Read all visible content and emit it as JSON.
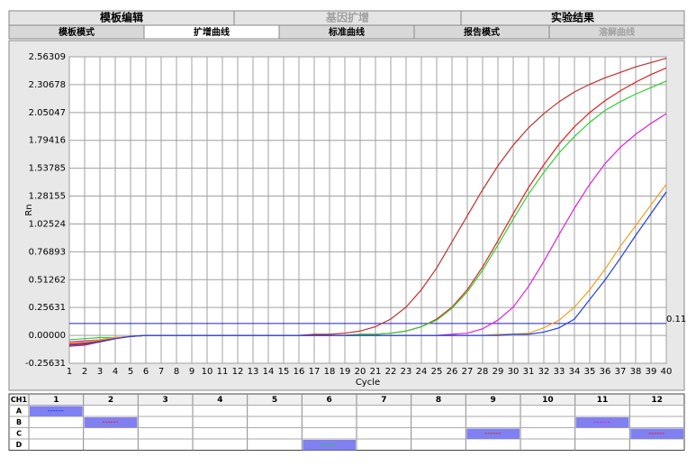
{
  "tabs": [
    {
      "label": "模板编辑",
      "disabled": false
    },
    {
      "label": "基因扩增",
      "disabled": true
    },
    {
      "label": "实验结果",
      "disabled": false
    }
  ],
  "subtabs": [
    {
      "label": "模板模式",
      "disabled": false,
      "active": false
    },
    {
      "label": "扩增曲线",
      "disabled": false,
      "active": true
    },
    {
      "label": "标准曲线",
      "disabled": false,
      "active": false
    },
    {
      "label": "报告模式",
      "disabled": false,
      "active": false
    },
    {
      "label": "溶解曲线",
      "disabled": true,
      "active": false
    }
  ],
  "chart_data": {
    "type": "line",
    "x_label": "Cycle",
    "y_label": "Rn",
    "x": [
      1,
      2,
      3,
      4,
      5,
      6,
      7,
      8,
      9,
      10,
      11,
      12,
      13,
      14,
      15,
      16,
      17,
      18,
      19,
      20,
      21,
      22,
      23,
      24,
      25,
      26,
      27,
      28,
      29,
      30,
      31,
      32,
      33,
      34,
      35,
      36,
      37,
      38,
      39,
      40
    ],
    "xlim": [
      1,
      40
    ],
    "xticks": [
      1,
      2,
      3,
      4,
      5,
      6,
      7,
      8,
      9,
      10,
      11,
      12,
      13,
      14,
      15,
      16,
      17,
      18,
      19,
      20,
      21,
      22,
      23,
      24,
      25,
      26,
      27,
      28,
      29,
      30,
      31,
      32,
      33,
      34,
      35,
      36,
      37,
      38,
      39,
      40
    ],
    "ylim": [
      -0.25631,
      2.56309
    ],
    "yticks": [
      -0.25631,
      {
        "value": 0,
        "label": "0.00000"
      },
      0.25631,
      0.51262,
      0.76893,
      1.02524,
      1.28155,
      1.53785,
      1.79416,
      2.05047,
      2.30678,
      2.56309
    ],
    "grid": true,
    "threshold": {
      "value": 0.11,
      "label": "0.11",
      "color": "#2020c0"
    },
    "series": [
      {
        "color": "#c03030",
        "values": [
          -0.08,
          -0.07,
          -0.05,
          -0.03,
          -0.01,
          0,
          0,
          0,
          0,
          0,
          0,
          0,
          0,
          0,
          0,
          0,
          0.01,
          0.01,
          0.02,
          0.04,
          0.08,
          0.15,
          0.26,
          0.42,
          0.62,
          0.86,
          1.1,
          1.34,
          1.56,
          1.75,
          1.91,
          2.04,
          2.15,
          2.24,
          2.31,
          2.37,
          2.42,
          2.47,
          2.51,
          2.55
        ]
      },
      {
        "color": "#e02020",
        "values": [
          -0.1,
          -0.09,
          -0.06,
          -0.03,
          -0.01,
          0,
          0,
          0,
          0,
          0,
          0,
          0,
          0,
          0,
          0,
          0,
          0,
          0,
          0,
          0.01,
          0.01,
          0.02,
          0.04,
          0.08,
          0.15,
          0.26,
          0.42,
          0.63,
          0.87,
          1.12,
          1.36,
          1.57,
          1.76,
          1.92,
          2.05,
          2.16,
          2.25,
          2.33,
          2.4,
          2.46
        ]
      },
      {
        "color": "#30d030",
        "values": [
          -0.04,
          -0.03,
          -0.02,
          -0.02,
          -0.01,
          0,
          0,
          0,
          0,
          0,
          0,
          0,
          0,
          0,
          0,
          0,
          0,
          0,
          0,
          0.01,
          0.01,
          0.02,
          0.04,
          0.08,
          0.14,
          0.25,
          0.4,
          0.6,
          0.83,
          1.07,
          1.3,
          1.5,
          1.68,
          1.83,
          1.96,
          2.07,
          2.15,
          2.22,
          2.28,
          2.34
        ]
      },
      {
        "color": "#e020e0",
        "values": [
          -0.06,
          -0.05,
          -0.04,
          -0.02,
          -0.01,
          0,
          0,
          0,
          0,
          0,
          0,
          0,
          0,
          0,
          0,
          0,
          0,
          0,
          0,
          0,
          0,
          0,
          0,
          0,
          0,
          0.01,
          0.02,
          0.06,
          0.14,
          0.26,
          0.45,
          0.68,
          0.93,
          1.17,
          1.39,
          1.58,
          1.73,
          1.85,
          1.95,
          2.04
        ]
      },
      {
        "color": "#f0a020",
        "values": [
          -0.07,
          -0.06,
          -0.04,
          -0.02,
          -0.01,
          0,
          0,
          0,
          0,
          0,
          0,
          0,
          0,
          0,
          0,
          0,
          0,
          0,
          0,
          0,
          0,
          0,
          0,
          0,
          0,
          0,
          0,
          0,
          0.01,
          0.01,
          0.02,
          0.07,
          0.14,
          0.26,
          0.42,
          0.61,
          0.82,
          1.01,
          1.2,
          1.39
        ]
      },
      {
        "color": "#2040e0",
        "values": [
          -0.09,
          -0.08,
          -0.06,
          -0.03,
          -0.01,
          0,
          0,
          0,
          0,
          0,
          0,
          0,
          0,
          0,
          0,
          0,
          0,
          0,
          0,
          0,
          0,
          0,
          0,
          0,
          0,
          0,
          0,
          0,
          0,
          0.01,
          0.01,
          0.03,
          0.07,
          0.15,
          0.33,
          0.51,
          0.71,
          0.92,
          1.12,
          1.32
        ]
      }
    ]
  },
  "plate": {
    "corner": "CH1",
    "columns": [
      "1",
      "2",
      "3",
      "4",
      "5",
      "6",
      "7",
      "8",
      "9",
      "10",
      "11",
      "12"
    ],
    "rows": [
      "A",
      "B",
      "C",
      "D"
    ],
    "wells": [
      {
        "row": "A",
        "column": "1",
        "color": "#2040e0"
      },
      {
        "row": "B",
        "column": "2",
        "color": "#e02020"
      },
      {
        "row": "C",
        "column": "9",
        "color": "#c03030"
      },
      {
        "row": "B",
        "column": "11",
        "color": "#e020e0"
      },
      {
        "row": "C",
        "column": "12",
        "color": "#e02020"
      },
      {
        "row": "D",
        "column": "6",
        "color": "#30d030"
      }
    ]
  }
}
